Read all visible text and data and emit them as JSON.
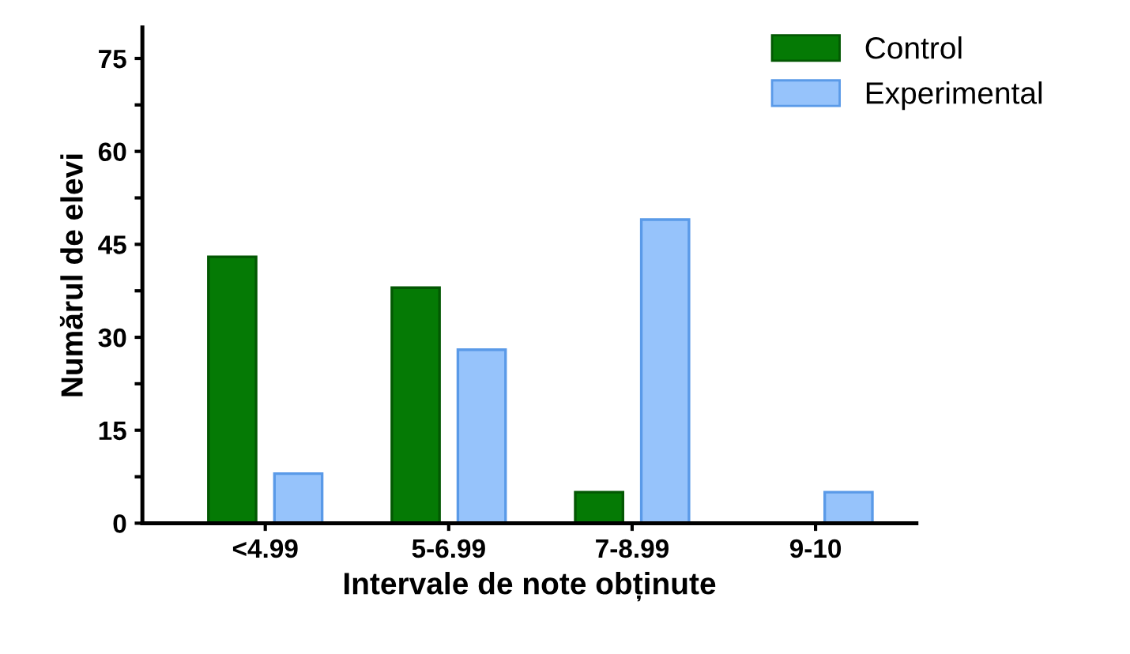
{
  "chart_data": {
    "type": "bar",
    "xlabel": "Intervale de note obținute",
    "ylabel": "Numărul de elevi",
    "categories": [
      "<4.99",
      "5-6.99",
      "7-8.99",
      "9-10"
    ],
    "series": [
      {
        "name": "Control",
        "color": "#057a05",
        "values": [
          43,
          38,
          5,
          null
        ]
      },
      {
        "name": "Experimental",
        "color": "#96c3fb",
        "values": [
          8,
          28,
          49,
          5
        ]
      }
    ],
    "ylim": [
      0,
      80
    ],
    "yticks": [
      0,
      {
        "value": 7.5,
        "label": null
      },
      15,
      {
        "value": 22.5,
        "label": null
      },
      30,
      {
        "value": 37.5,
        "label": null
      },
      45,
      {
        "value": 52.5,
        "label": null
      },
      60,
      {
        "value": 67.5,
        "label": null
      },
      75
    ],
    "grid": false,
    "legend": "top right"
  }
}
